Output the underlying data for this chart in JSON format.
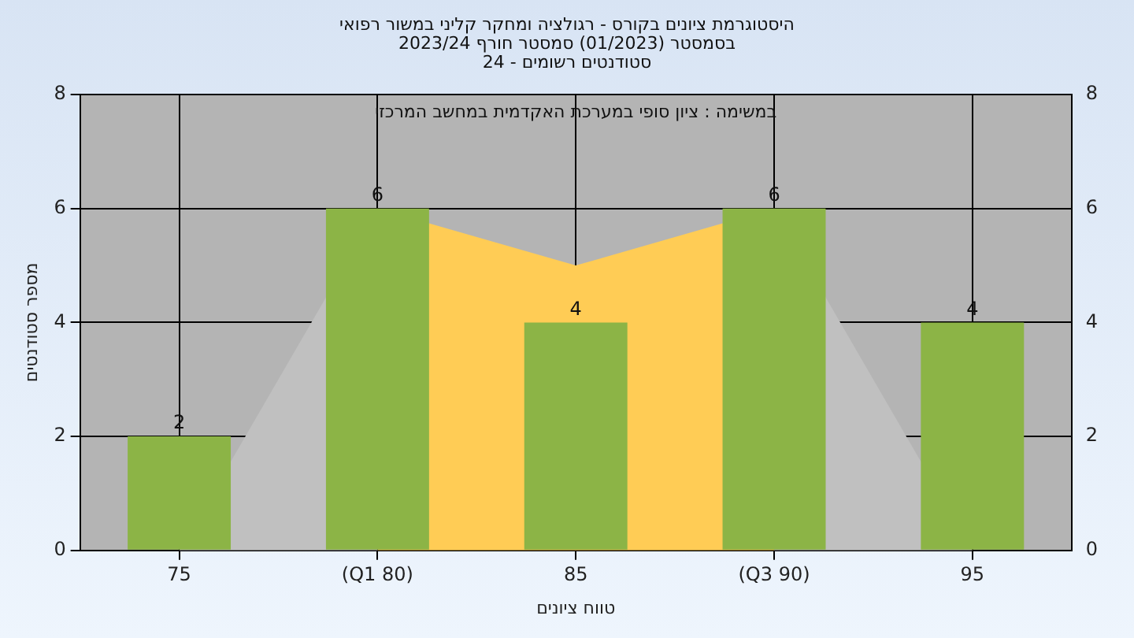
{
  "chart_data": {
    "type": "bar",
    "title": "היסטוגרמת ציונים בקורס - רגולציה ומחקר קליני במשור רפואי",
    "subtitle": "בסמסטר  (01/2023)  סמסטר חורף  2023/24\nסטודנטים רשומים - 24",
    "xlabel": "טווח ציונים",
    "ylabel": "מספר סטודנטים",
    "annotations": [
      "במשימה : ציון סופי במערכת האקדמית במחשב המרכזי"
    ],
    "categories": [
      "75",
      "(Q1 80)",
      "85",
      "(Q3 90)",
      "95"
    ],
    "series": [
      {
        "color": "#8cb446",
        "values": [
          2,
          6,
          4,
          6,
          4
        ],
        "value_labels": [
          "2",
          "6",
          "4",
          "6",
          "4"
        ]
      },
      {
        "type": "area",
        "color": "#c0c0c0",
        "values": [
          0,
          6,
          null,
          6,
          0
        ]
      },
      {
        "type": "area",
        "color": "#ffcc55",
        "values": [
          null,
          6,
          5,
          6,
          null
        ]
      }
    ],
    "ylim": [
      0,
      8
    ],
    "yticks": [
      0,
      2,
      4,
      6,
      8
    ],
    "y2lim": [
      0,
      8
    ],
    "y2ticks": [
      0,
      2,
      4,
      6,
      8
    ],
    "grid": true
  }
}
